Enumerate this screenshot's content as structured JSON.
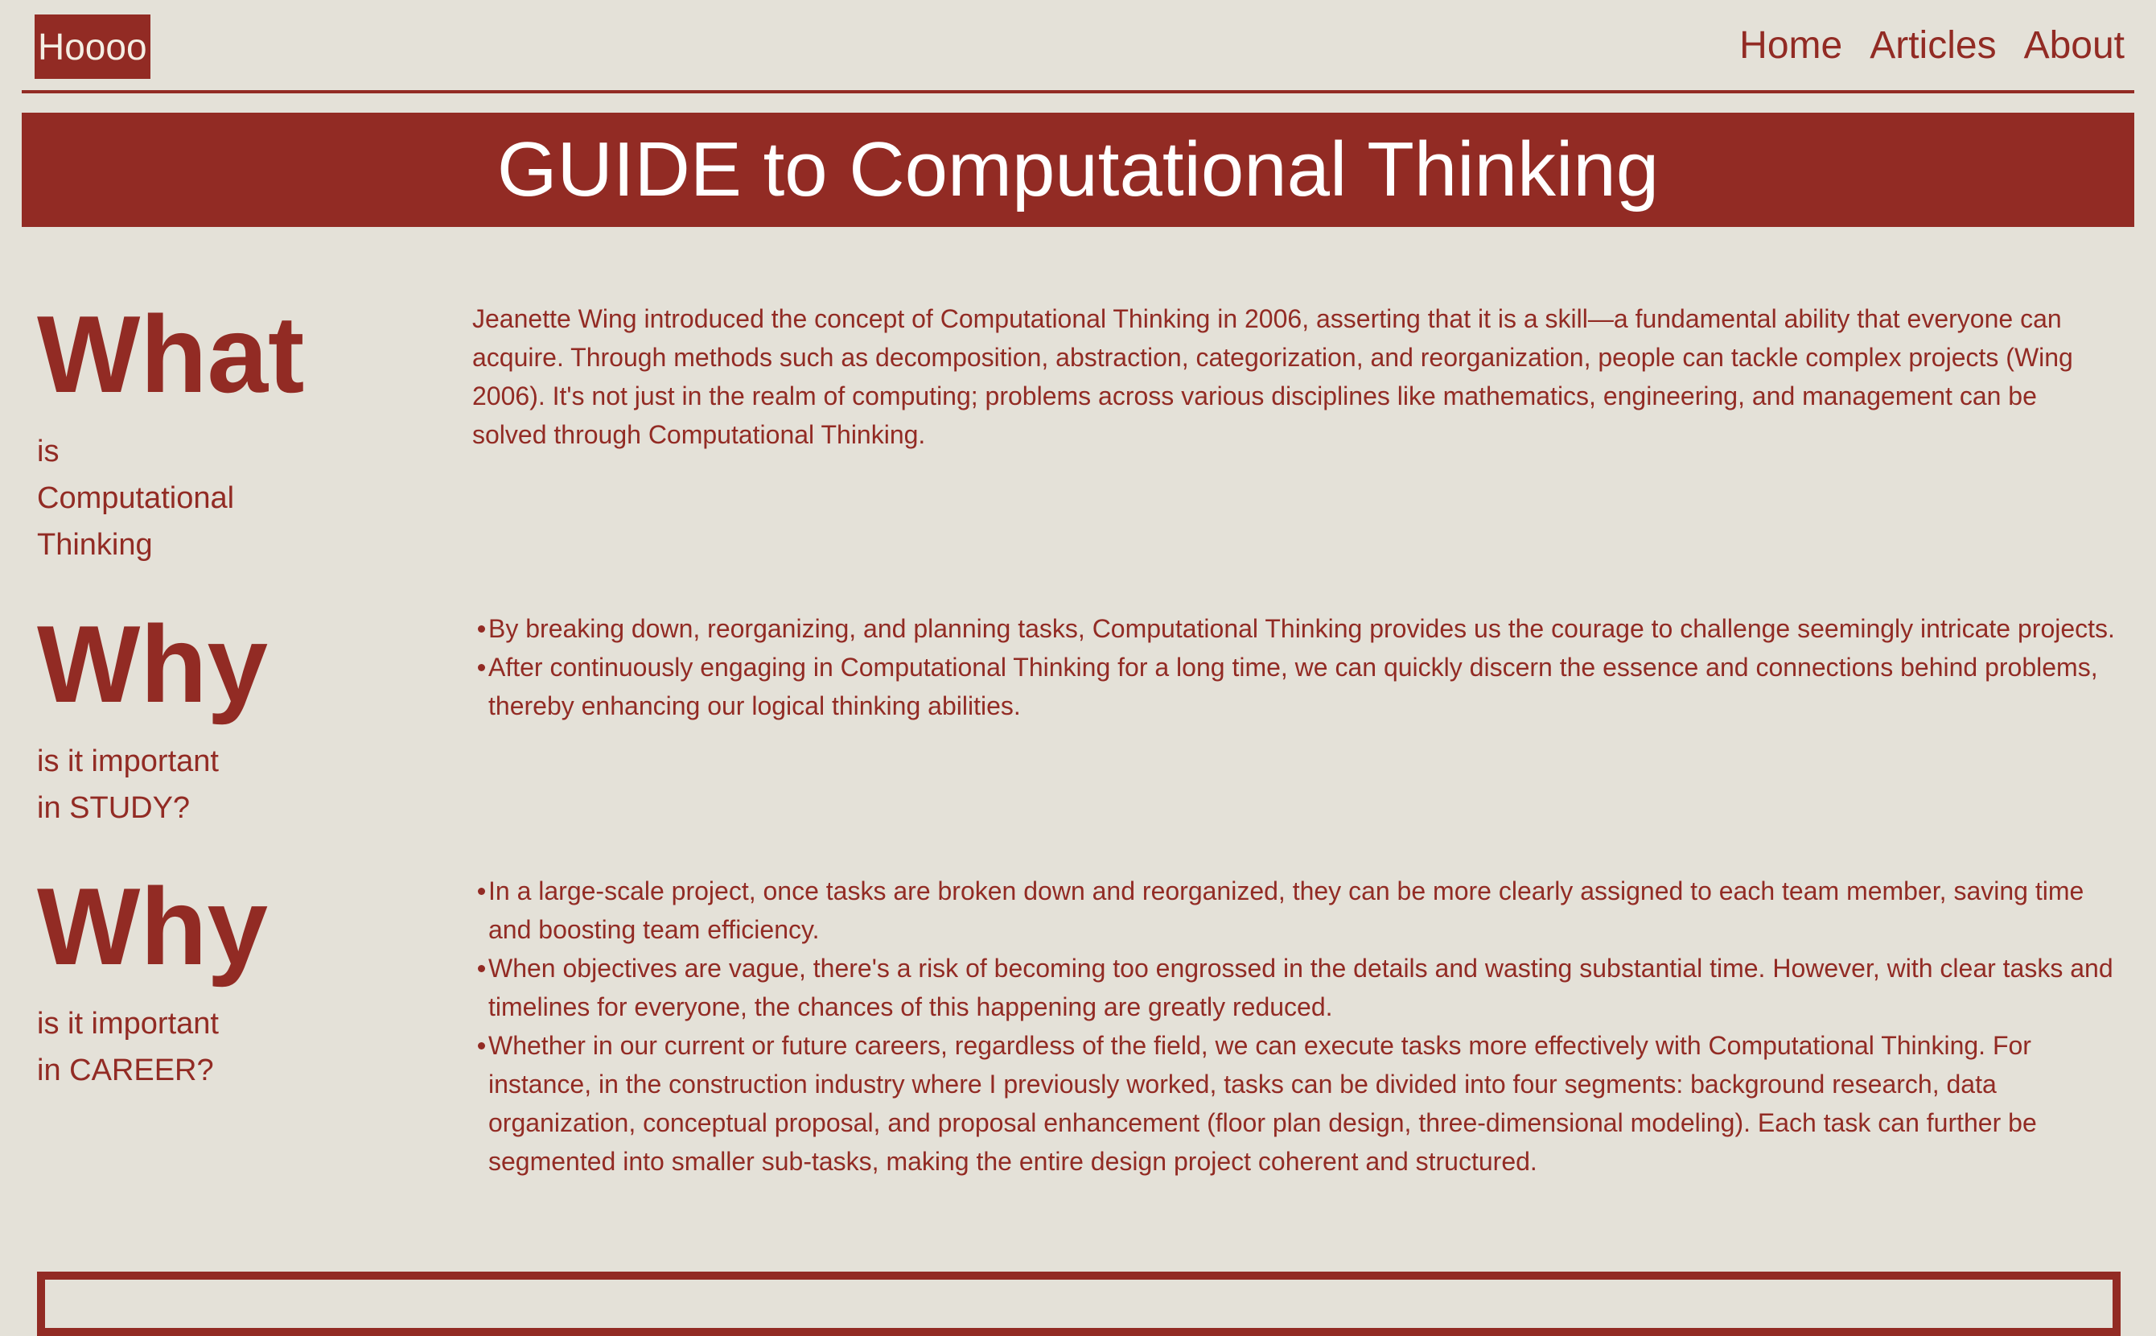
{
  "header": {
    "logo": "Hoooo",
    "nav": [
      "Home",
      "Articles",
      "About"
    ]
  },
  "banner": {
    "title": "GUIDE to Computational Thinking"
  },
  "sections": {
    "what": {
      "heading": "What",
      "subtitle": [
        "is",
        "Computational",
        "Thinking"
      ],
      "text": "Jeanette Wing introduced the concept of Computational Thinking in 2006, asserting that it is a skill—a fundamental ability that everyone can acquire. Through methods such as decomposition, abstraction, categorization, and reorganization, people can tackle complex projects (Wing 2006). It's not just in the realm of computing; problems across various disciplines like mathematics, engineering, and management can be solved through Computational Thinking."
    },
    "study": {
      "heading": "Why",
      "subtitle": [
        "is it important",
        "in STUDY?"
      ],
      "items": [
        "By breaking down, reorganizing, and planning tasks, Computational Thinking provides us the courage to challenge seemingly intricate projects.",
        "After continuously engaging in Computational Thinking for a long time, we can quickly discern the essence and connections behind problems, thereby enhancing our logical thinking abilities."
      ]
    },
    "career": {
      "heading": "Why",
      "subtitle": [
        "is it important",
        "in CAREER?"
      ],
      "items": [
        "In a large-scale project, once tasks are broken down and reorganized, they can be more clearly assigned to each team member, saving time and boosting team efficiency.",
        "When objectives are vague, there's a risk of becoming too engrossed in the details and wasting substantial time. However, with clear tasks and timelines for everyone, the chances of this happening are greatly reduced.",
        "Whether in our current or future careers, regardless of the field, we can execute tasks more effectively with Computational Thinking. For instance, in the construction industry where I previously worked, tasks can be divided into four segments: background research, data organization, conceptual proposal, and proposal enhancement (floor plan design, three-dimensional modeling). Each task can further be segmented into smaller sub-tasks, making the entire design project coherent and structured."
      ]
    }
  },
  "colors": {
    "accent": "#922b24",
    "background": "#e4e1d8",
    "banner_text": "#ffffff"
  }
}
